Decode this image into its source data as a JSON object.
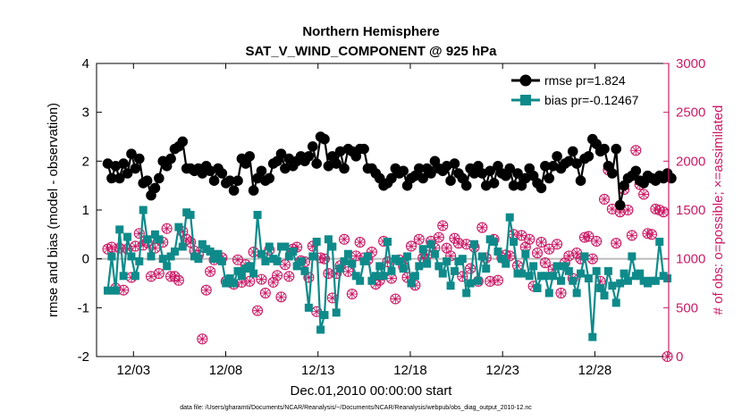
{
  "chart_data": {
    "type": "line",
    "title": "Northern Hemisphere",
    "subtitle": "SAT_V_WIND_COMPONENT @ 925 hPa",
    "xlabel": "Dec.01,2010 00:00:00 start",
    "ylabel_left": "rmse and bias (model - observation)",
    "ylabel_right": "# of obs: o=possible; ×=assimilated",
    "xlim": [
      0.5,
      31.5
    ],
    "ylim_left": [
      -2,
      4
    ],
    "ylim_right": [
      0,
      3000
    ],
    "x_ticks": [
      2.5,
      7.5,
      12.5,
      17.5,
      22.5,
      27.5
    ],
    "x_tick_labels": [
      "12/03",
      "12/08",
      "12/13",
      "12/18",
      "12/23",
      "12/28"
    ],
    "y_ticks_left": [
      -2,
      -1,
      0,
      1,
      2,
      3,
      4
    ],
    "y_tick_labels_left": [
      "-2",
      "-1",
      "0",
      "1",
      "2",
      "3",
      "4"
    ],
    "y_ticks_right": [
      0,
      500,
      1000,
      1500,
      2000,
      2500,
      3000
    ],
    "y_tick_labels_right": [
      "0",
      "500",
      "1000",
      "1500",
      "2000",
      "2500",
      "3000"
    ],
    "zero_line": 0,
    "grid": false,
    "legend_placement": "top-right",
    "footnote": "data file: /Users/gharamti/Documents/NCAR/Reanalysis/~/Documents/NCAR/Reanalysis/webpub/obs_diag_output_2010-12.nc",
    "colors": {
      "rmse": "#000000",
      "bias": "#0f8a8a",
      "obs": "#cc1a66",
      "zero": "#bbbbbb"
    },
    "series": [
      {
        "name": "rmse",
        "legend_label": "rmse pr=1.824",
        "color": "#000000",
        "marker": "circle",
        "values": [
          1.95,
          1.65,
          1.9,
          1.65,
          1.95,
          1.75,
          2.15,
          1.85,
          2.05,
          1.55,
          1.6,
          1.3,
          1.45,
          1.65,
          2.0,
          1.9,
          2.05,
          2.25,
          2.3,
          2.4,
          1.85,
          1.85,
          1.8,
          1.85,
          1.75,
          1.9,
          1.8,
          1.6,
          1.85,
          1.75,
          1.55,
          1.6,
          1.4,
          1.6,
          2.05,
          1.95,
          2.1,
          1.4,
          1.65,
          1.8,
          1.6,
          1.65,
          1.95,
          2.0,
          2.15,
          1.85,
          2.05,
          1.9,
          2.0,
          2.1,
          2.0,
          2.1,
          2.3,
          1.95,
          2.5,
          2.45,
          1.9,
          2.1,
          1.95,
          2.2,
          1.85,
          2.25,
          2.2,
          2.1,
          2.25,
          2.25,
          1.85,
          1.85,
          1.75,
          1.65,
          1.5,
          1.55,
          1.65,
          1.85,
          1.75,
          1.8,
          1.5,
          1.65,
          1.7,
          1.85,
          1.65,
          1.85,
          1.75,
          2.0,
          1.85,
          1.8,
          1.9,
          1.6,
          1.95,
          1.75,
          1.65,
          1.5,
          1.85,
          1.75,
          1.9,
          1.75,
          1.5,
          1.8,
          1.55,
          1.9,
          1.75,
          1.7,
          1.85,
          1.5,
          1.75,
          1.5,
          1.65,
          1.85,
          1.7,
          1.55,
          1.45,
          1.9,
          1.65,
          1.9,
          2.1,
          1.85,
          1.95,
          2.0,
          2.2,
          1.95,
          1.6,
          2.05,
          2.1,
          2.45,
          2.35,
          2.2,
          2.25,
          1.9,
          1.75,
          2.25,
          1.1,
          1.5,
          1.65,
          1.7,
          1.8,
          1.6,
          1.55,
          1.7,
          1.65,
          1.6,
          1.7,
          1.65,
          1.75,
          1.65
        ]
      },
      {
        "name": "bias",
        "legend_label": "bias pr=-0.12467",
        "color": "#0f8a8a",
        "marker": "square",
        "values": [
          -0.65,
          0.05,
          -0.65,
          0.6,
          -0.35,
          0.45,
          0.05,
          -0.35,
          -0.05,
          1.0,
          0.4,
          0.05,
          0.5,
          0.4,
          0.0,
          -0.15,
          0.05,
          0.15,
          0.65,
          0.25,
          0.95,
          0.9,
          0.05,
          0.0,
          0.3,
          0.2,
          0.15,
          0.0,
          0.1,
          -0.05,
          -0.5,
          -0.4,
          -0.5,
          -0.25,
          -0.35,
          -0.2,
          -0.15,
          -0.3,
          0.9,
          0.1,
          -0.05,
          0.25,
          0.0,
          -0.05,
          0.25,
          0.25,
          0.05,
          0.15,
          -0.15,
          -0.05,
          -0.25,
          -1.0,
          0.05,
          0.35,
          -1.45,
          -1.15,
          0.4,
          0.25,
          -1.1,
          -0.2,
          -0.05,
          0.1,
          -0.1,
          -0.35,
          -0.45,
          -0.05,
          0.05,
          -0.45,
          -0.35,
          -0.15,
          -0.35,
          0.35,
          -0.25,
          0.0,
          -0.05,
          -0.2,
          0.05,
          -0.5,
          -0.35,
          -0.15,
          0.2,
          -0.1,
          0.3,
          0.1,
          -0.15,
          -0.3,
          -0.05,
          -0.55,
          -0.25,
          -0.05,
          0.0,
          -0.7,
          -0.5,
          0.3,
          -0.45,
          0.05,
          -0.2,
          0.4,
          0.35,
          0.15,
          0.0,
          -0.1,
          0.85,
          0.35,
          -0.3,
          -0.3,
          0.1,
          -0.35,
          -0.15,
          -0.6,
          -0.35,
          -0.35,
          -0.7,
          -0.35,
          -0.15,
          -0.45,
          -0.15,
          -0.25,
          -0.45,
          -0.7,
          -0.3,
          0.05,
          -0.4,
          -1.6,
          -0.25,
          -0.6,
          -0.75,
          -0.25,
          -0.55,
          -0.9,
          -0.5,
          -0.3,
          -0.45,
          0.05,
          -0.35,
          -0.3,
          -0.45,
          -0.5,
          -0.45,
          -0.45,
          0.35,
          -0.35,
          -0.4
        ]
      },
      {
        "name": "obs_possible",
        "axis": "right",
        "marker": "circle",
        "color": "#cc1a66",
        "values": [
          1100,
          1120,
          700,
          1110,
          680,
          1100,
          810,
          1130,
          1260,
          1140,
          1170,
          820,
          1110,
          850,
          1170,
          1310,
          820,
          820,
          780,
          1280,
          1200,
          1170,
          1080,
          1040,
          180,
          680,
          870,
          990,
          1010,
          1010,
          770,
          760,
          740,
          990,
          760,
          940,
          770,
          1070,
          470,
          790,
          650,
          1090,
          760,
          830,
          610,
          940,
          820,
          1100,
          1120,
          980,
          970,
          810,
          1130,
          460,
          1010,
          1000,
          850,
          600,
          850,
          930,
          1200,
          870,
          640,
          1030,
          1170,
          1010,
          990,
          1070,
          740,
          780,
          1180,
          970,
          800,
          590,
          990,
          920,
          810,
          1130,
          730,
          1200,
          1010,
          1040,
          1180,
          1110,
          1220,
          1340,
          1110,
          1030,
          1210,
          1160,
          820,
          1150,
          900,
          1120,
          770,
          1320,
          1010,
          770,
          1200,
          780,
          1010,
          1040,
          1030,
          1250,
          930,
          1240,
          1120,
          1200,
          720,
          1060,
          1170,
          960,
          1100,
          890,
          1150,
          650,
          960,
          1030,
          800,
          1060,
          1000,
          1220,
          1230,
          1000,
          1180,
          770,
          1610,
          1910,
          1510,
          1160,
          1480,
          1710,
          1500,
          1240,
          2110,
          1760,
          1660,
          1260,
          1250,
          1510,
          1500,
          1480,
          0
        ]
      },
      {
        "name": "obs_assimilated",
        "axis": "right",
        "marker": "x",
        "color": "#cc1a66",
        "values": [
          1100,
          1120,
          700,
          1110,
          680,
          1100,
          810,
          1130,
          1260,
          1140,
          1170,
          820,
          1110,
          850,
          1170,
          1310,
          820,
          820,
          780,
          1280,
          1200,
          1170,
          1080,
          1040,
          180,
          680,
          870,
          990,
          1010,
          1010,
          770,
          760,
          740,
          990,
          760,
          940,
          770,
          1070,
          470,
          790,
          650,
          1090,
          760,
          830,
          610,
          940,
          820,
          1100,
          1120,
          980,
          970,
          810,
          1130,
          460,
          1010,
          1000,
          850,
          600,
          850,
          930,
          1200,
          870,
          640,
          1030,
          1170,
          1010,
          990,
          1070,
          740,
          780,
          1180,
          970,
          800,
          590,
          990,
          920,
          810,
          1130,
          730,
          1200,
          1010,
          1040,
          1180,
          1110,
          1220,
          1340,
          1110,
          1030,
          1210,
          1160,
          820,
          1150,
          900,
          1120,
          770,
          1320,
          1010,
          770,
          1200,
          780,
          1010,
          1040,
          1030,
          1250,
          930,
          1240,
          1120,
          1200,
          720,
          1060,
          1170,
          960,
          1100,
          890,
          1150,
          650,
          960,
          1030,
          800,
          1060,
          1000,
          1220,
          1230,
          1000,
          1180,
          770,
          1610,
          1910,
          1510,
          1160,
          1480,
          1710,
          1500,
          1240,
          2110,
          1760,
          1660,
          1260,
          1250,
          1510,
          1500,
          1480,
          0
        ]
      }
    ]
  }
}
